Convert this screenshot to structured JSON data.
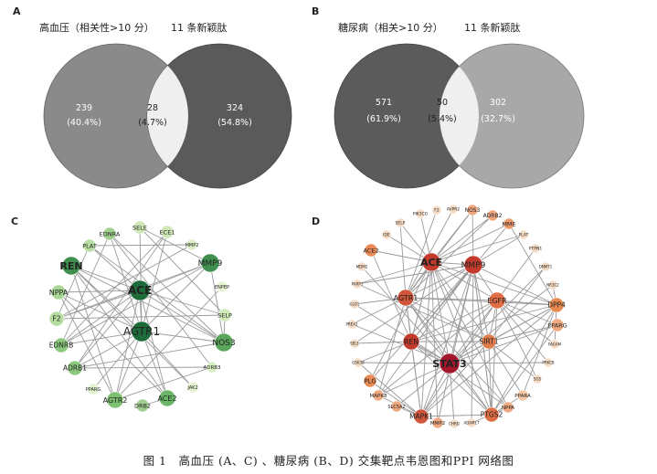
{
  "panels": {
    "A": {
      "letter": "A",
      "left_title": "高血压（相关性>10 分）",
      "right_title": "11 条新颖肽",
      "left_count": "239",
      "left_pct": "(40.4%)",
      "mid_count": "28",
      "mid_pct": "(4.7%)",
      "right_count": "324",
      "right_pct": "(54.8%)",
      "colors": {
        "left": "#8a8a8a",
        "right": "#5a5a5a",
        "overlap": "#efefef"
      }
    },
    "B": {
      "letter": "B",
      "left_title": "糖尿病（相关>10 分）",
      "right_title": "11 条新颖肽",
      "left_count": "571",
      "left_pct": "(61.9%)",
      "mid_count": "50",
      "mid_pct": "(5.4%)",
      "right_count": "302",
      "right_pct": "(32.7%)",
      "colors": {
        "left": "#5b5b5b",
        "right": "#a8a8a8",
        "overlap": "#efefef"
      }
    },
    "C": {
      "letter": "C",
      "nodes": [
        {
          "id": "EDNRA",
          "r": 7,
          "fs": 6.5,
          "color": "#9fd08f"
        },
        {
          "id": "SELE",
          "r": 7,
          "fs": 6.5,
          "color": "#cde8b6"
        },
        {
          "id": "ECE1",
          "r": 7,
          "fs": 6.5,
          "color": "#cde8b6"
        },
        {
          "id": "PLAT",
          "r": 7,
          "fs": 6.5,
          "color": "#b8dea4"
        },
        {
          "id": "MMP2",
          "r": 6,
          "fs": 5,
          "color": "#dcefc6"
        },
        {
          "id": "REN",
          "r": 10,
          "fs": 11,
          "color": "#3f8f4f",
          "bold": true
        },
        {
          "id": "MMP9",
          "r": 10,
          "fs": 9,
          "color": "#3f8f4f"
        },
        {
          "id": "ACE",
          "r": 11,
          "fs": 12,
          "color": "#1e6b3a",
          "bold": true
        },
        {
          "id": "NPPA",
          "r": 8,
          "fs": 8,
          "color": "#a9d795"
        },
        {
          "id": "ENPEP",
          "r": 6,
          "fs": 5,
          "color": "#e7f4d3"
        },
        {
          "id": "F2",
          "r": 8,
          "fs": 7.5,
          "color": "#b4dd9f"
        },
        {
          "id": "SELP",
          "r": 7,
          "fs": 6.5,
          "color": "#cfe9b7"
        },
        {
          "id": "AGTR1",
          "r": 11,
          "fs": 12,
          "color": "#1e6b3a"
        },
        {
          "id": "NOS3",
          "r": 10,
          "fs": 9,
          "color": "#5aa65c"
        },
        {
          "id": "EDNRB",
          "r": 8,
          "fs": 7.5,
          "color": "#8cc97e"
        },
        {
          "id": "ADRB3",
          "r": 6,
          "fs": 5.5,
          "color": "#d9eec2"
        },
        {
          "id": "ADRB1",
          "r": 8,
          "fs": 7.5,
          "color": "#8cc97e"
        },
        {
          "id": "PPARG",
          "r": 6,
          "fs": 5,
          "color": "#e3f2cf"
        },
        {
          "id": "JAK2",
          "r": 6,
          "fs": 5,
          "color": "#e3f2cf"
        },
        {
          "id": "AGTR2",
          "r": 9,
          "fs": 8,
          "color": "#7cc070"
        },
        {
          "id": "ACE2",
          "r": 9,
          "fs": 8,
          "color": "#6bb666"
        },
        {
          "id": "DRB2",
          "r": 7,
          "fs": 6.5,
          "color": "#9fd08f"
        }
      ]
    },
    "D": {
      "letter": "D",
      "nodes": [
        {
          "id": "PIK3CG",
          "r": 5,
          "fs": 4.5,
          "color": "#f6dcc4"
        },
        {
          "id": "F2",
          "r": 5,
          "fs": 4.5,
          "color": "#f6dcc4"
        },
        {
          "id": "AVPR2",
          "r": 5,
          "fs": 4.5,
          "color": "#f6dcc4"
        },
        {
          "id": "NOS3",
          "r": 6,
          "fs": 6,
          "color": "#f0a880"
        },
        {
          "id": "ADRB2",
          "r": 6,
          "fs": 6,
          "color": "#f0a880"
        },
        {
          "id": "SELP",
          "r": 5,
          "fs": 4.5,
          "color": "#f6dcc4"
        },
        {
          "id": "MME",
          "r": 6,
          "fs": 6.5,
          "color": "#ef9a6a"
        },
        {
          "id": "IDE",
          "r": 5,
          "fs": 4.5,
          "color": "#f6dcc4"
        },
        {
          "id": "PLAT",
          "r": 5,
          "fs": 4.5,
          "color": "#f6dcc4"
        },
        {
          "id": "ACE2",
          "r": 7,
          "fs": 6.5,
          "color": "#ea8a55"
        },
        {
          "id": "PTPN1",
          "r": 5,
          "fs": 4.5,
          "color": "#f6dcc4"
        },
        {
          "id": "ACE",
          "r": 10,
          "fs": 11,
          "color": "#c23a2c",
          "bold": true
        },
        {
          "id": "MMP9",
          "r": 10,
          "fs": 9,
          "color": "#c23a2c"
        },
        {
          "id": "MDM2",
          "r": 5,
          "fs": 4,
          "color": "#f6dcc4"
        },
        {
          "id": "DNMT1",
          "r": 5,
          "fs": 4,
          "color": "#f6dcc4"
        },
        {
          "id": "PARP1",
          "r": 5,
          "fs": 4,
          "color": "#f6dcc4"
        },
        {
          "id": "AGTR1",
          "r": 9,
          "fs": 8,
          "color": "#d0553a"
        },
        {
          "id": "EGFR",
          "r": 9,
          "fs": 8,
          "color": "#e06d45"
        },
        {
          "id": "NR3C2",
          "r": 5,
          "fs": 4,
          "color": "#f6dcc4"
        },
        {
          "id": "DPP4",
          "r": 8,
          "fs": 7.5,
          "color": "#e8894f"
        },
        {
          "id": "GLO1",
          "r": 5,
          "fs": 4,
          "color": "#f6dcc4"
        },
        {
          "id": "PREX2",
          "r": 5,
          "fs": 4,
          "color": "#f6dcc4"
        },
        {
          "id": "PPARG",
          "r": 7,
          "fs": 6.5,
          "color": "#f0a880"
        },
        {
          "id": "SELE",
          "r": 5,
          "fs": 4,
          "color": "#f6dcc4"
        },
        {
          "id": "REN",
          "r": 9,
          "fs": 8,
          "color": "#c23a2c"
        },
        {
          "id": "SIRT1",
          "r": 8,
          "fs": 7.5,
          "color": "#e07a4a"
        },
        {
          "id": "PAGAM",
          "r": 5,
          "fs": 4,
          "color": "#f6dcc4"
        },
        {
          "id": "GSK3B",
          "r": 5,
          "fs": 4,
          "color": "#f6dcc4"
        },
        {
          "id": "STAT3",
          "r": 11,
          "fs": 11,
          "color": "#a5172c",
          "bold": true
        },
        {
          "id": "PRKCB",
          "r": 5,
          "fs": 4,
          "color": "#f6dcc4"
        },
        {
          "id": "PLG",
          "r": 7,
          "fs": 7,
          "color": "#ea8a55"
        },
        {
          "id": "SGS",
          "r": 5,
          "fs": 4,
          "color": "#f6dcc4"
        },
        {
          "id": "MAPK8",
          "r": 6,
          "fs": 5.5,
          "color": "#f0a880"
        },
        {
          "id": "PPARA",
          "r": 6,
          "fs": 5.5,
          "color": "#f6c7a4"
        },
        {
          "id": "SLC5A2",
          "r": 6,
          "fs": 5,
          "color": "#f0a880"
        },
        {
          "id": "NPPA",
          "r": 6,
          "fs": 5.5,
          "color": "#f0a880"
        },
        {
          "id": "MAPK1",
          "r": 8,
          "fs": 7.5,
          "color": "#d0553a"
        },
        {
          "id": "PTGS2",
          "r": 8,
          "fs": 7.5,
          "color": "#e06d45"
        },
        {
          "id": "MMP2",
          "r": 6,
          "fs": 5.5,
          "color": "#f0a880"
        },
        {
          "id": "CHRD",
          "r": 5,
          "fs": 4,
          "color": "#f6dcc4"
        },
        {
          "id": "ADAM17",
          "r": 5,
          "fs": 4,
          "color": "#f6dcc4"
        }
      ]
    }
  },
  "caption": "图 1　高血压 (A、C) 、糖尿病 (B、D) 交集靶点韦恩图和PPI 网络图"
}
